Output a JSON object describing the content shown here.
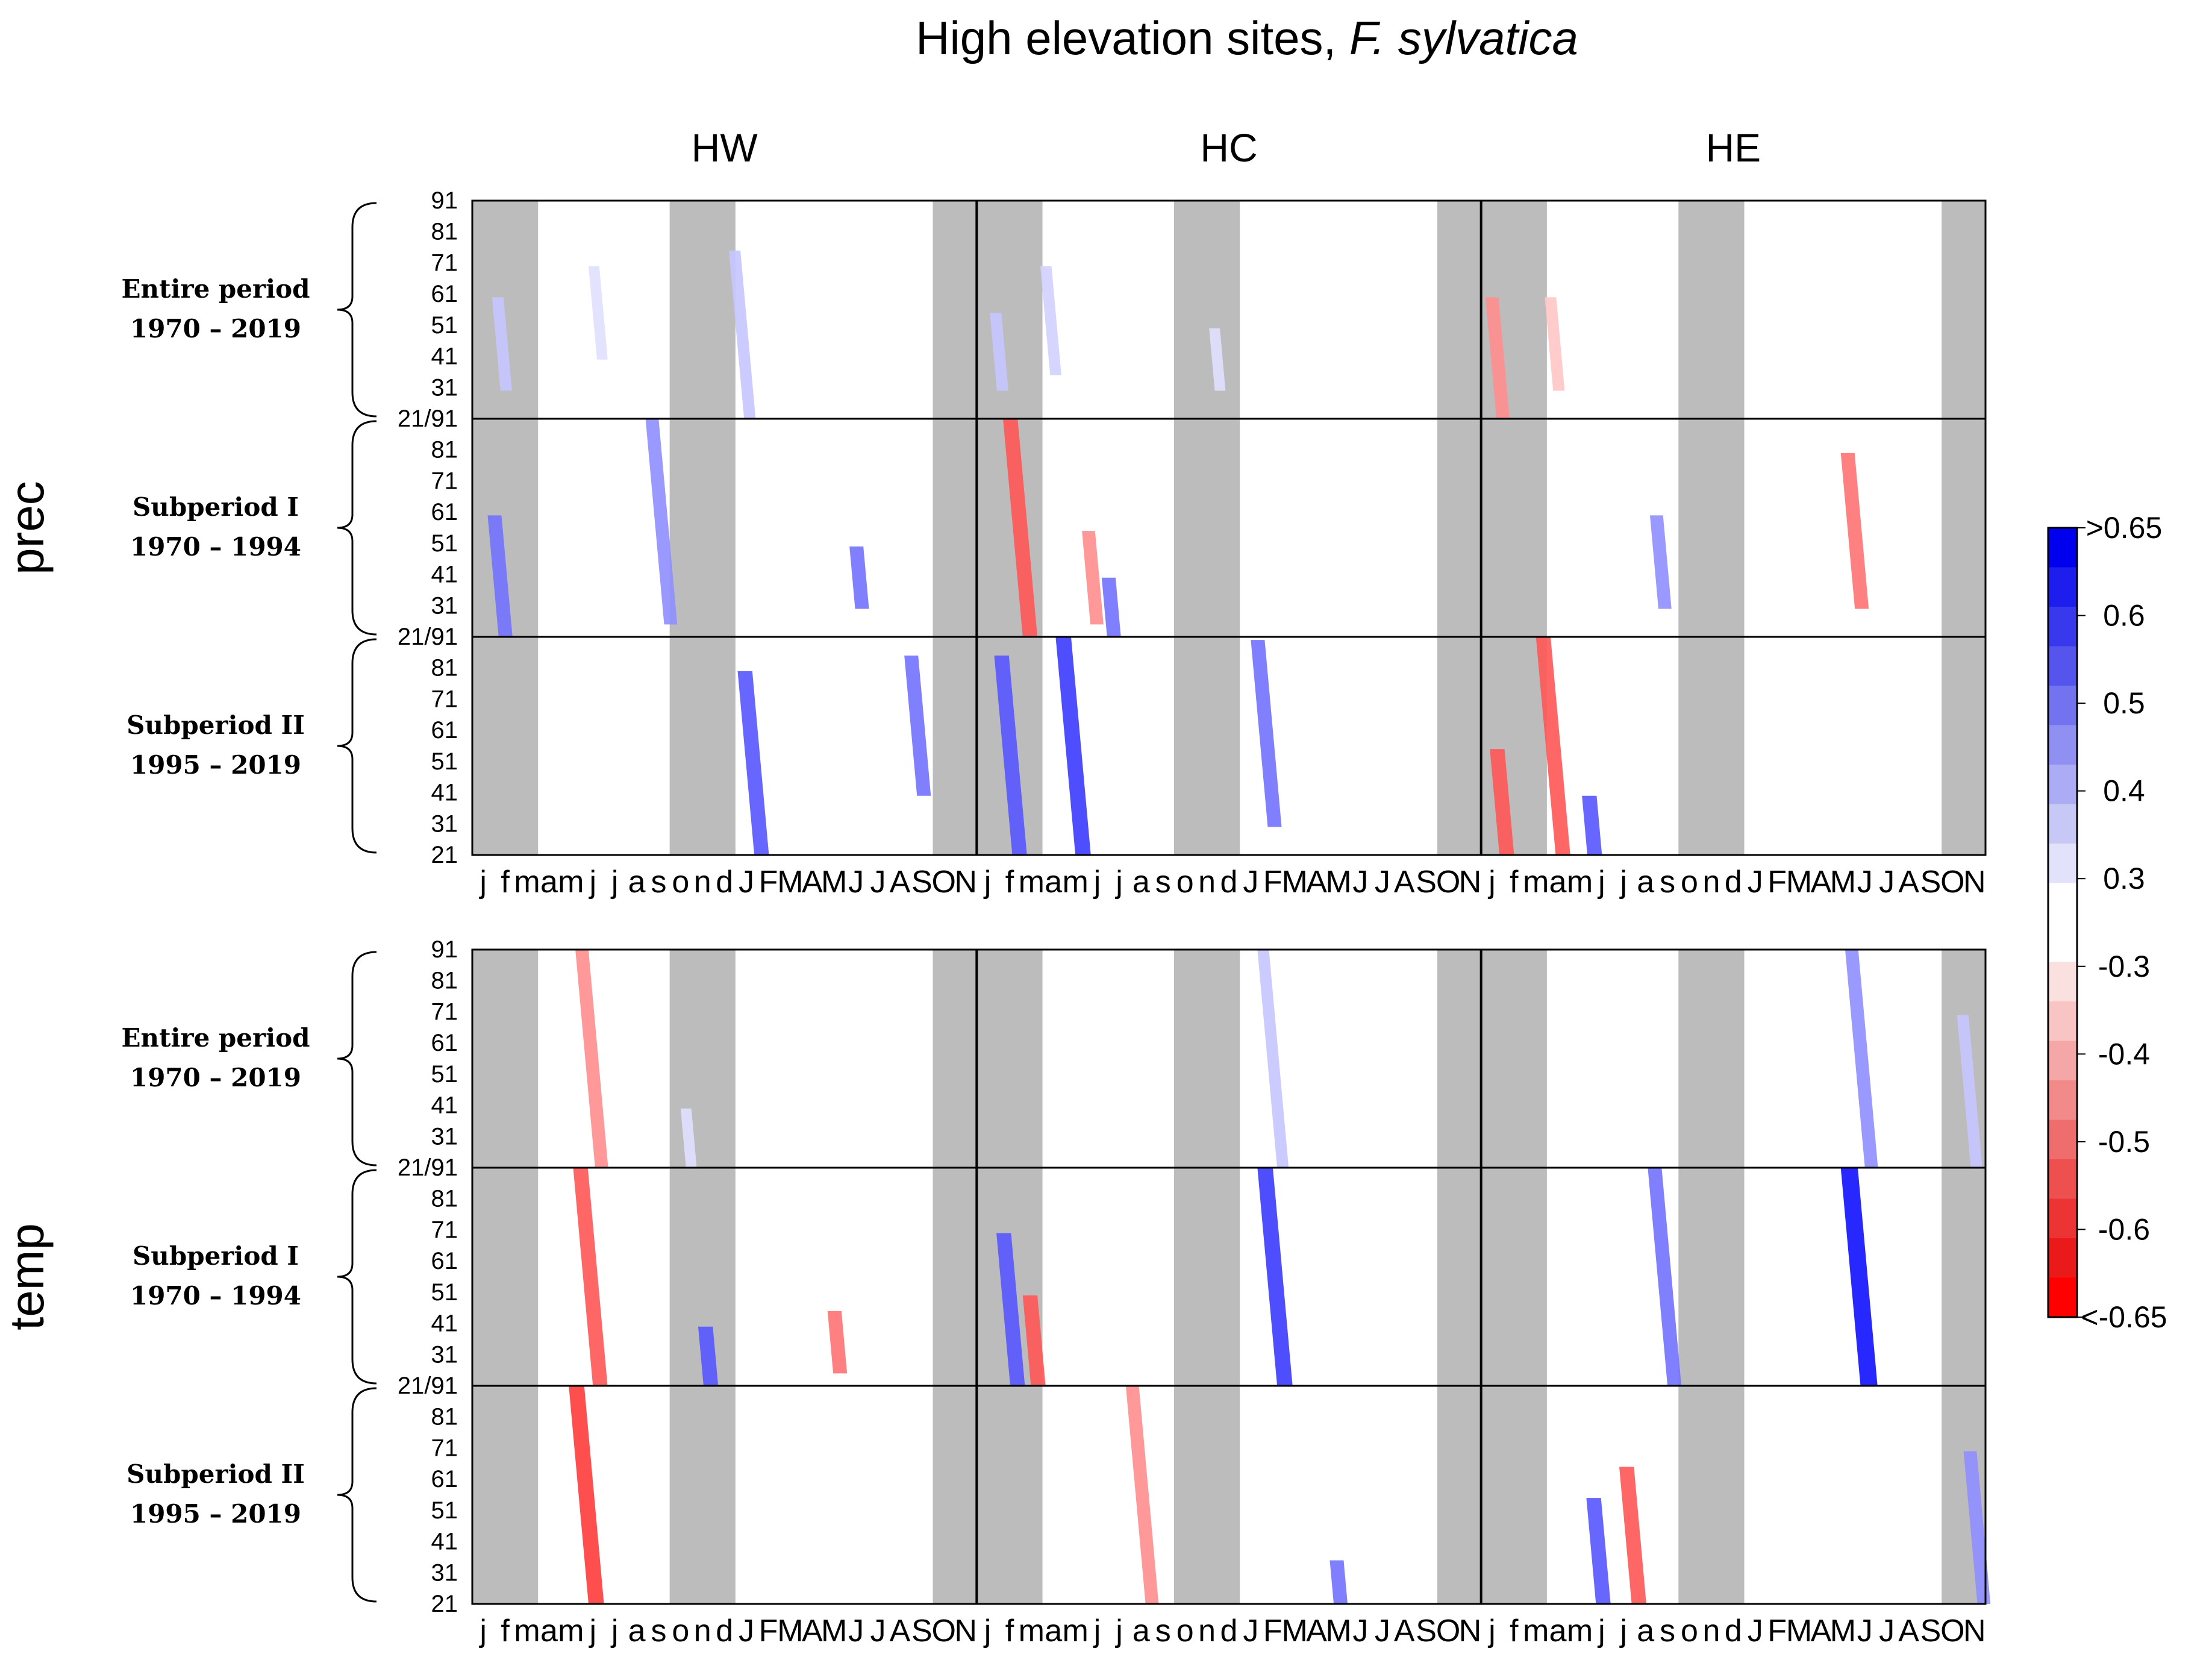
{
  "chart_data": {
    "type": "heatmap",
    "title_prefix": "High elevation sites, ",
    "title_italic": "F. sylvatica",
    "columns": [
      "HW",
      "HC",
      "HE"
    ],
    "variables": [
      "prec",
      "temp"
    ],
    "periods": [
      {
        "name": "Entire period",
        "years": "1970 – 2019"
      },
      {
        "name": "Subperiod I",
        "years": "1970 – 1994"
      },
      {
        "name": "Subperiod II",
        "years": "1995 – 2019"
      }
    ],
    "y_ticks_upper": [
      "91",
      "81",
      "71",
      "61",
      "51",
      "41",
      "31"
    ],
    "y_tick_join": "21/91",
    "y_tick_bottom": "21",
    "x_month_labels": [
      "j",
      "f",
      "m",
      "a",
      "m",
      "j",
      "j",
      "a",
      "s",
      "o",
      "n",
      "d",
      "J",
      "F",
      "M",
      "A",
      "M",
      "J",
      "J",
      "A",
      "S",
      "O",
      "N"
    ],
    "grey_month_ranges": [
      [
        0,
        2
      ],
      [
        9,
        11
      ],
      [
        21,
        22
      ]
    ],
    "colorbar": {
      "labels": [
        ">0.65",
        "0.6",
        "0.5",
        "0.4",
        "0.3",
        "-0.3",
        "-0.4",
        "-0.5",
        "-0.6",
        "<-0.65"
      ],
      "colors": [
        "#0000ee",
        "#1d1ded",
        "#3838ec",
        "#5555ee",
        "#7373f0",
        "#9090f2",
        "#acacf4",
        "#c8c8f6",
        "#e2e2fa",
        "#ffffff",
        "#ffffff",
        "#fbe0e0",
        "#f8c4c4",
        "#f5a7a7",
        "#f38a8a",
        "#f06d6d",
        "#ee5050",
        "#ec3434",
        "#eb1a1a",
        "#ff0000"
      ]
    },
    "correlation_streaks": [
      {
        "var": "prec",
        "period": 0,
        "col": 0,
        "month": 0.9,
        "age": [
          30,
          60
        ],
        "sign": "pos",
        "r": 0.35
      },
      {
        "var": "prec",
        "period": 0,
        "col": 0,
        "month": 5.3,
        "age": [
          40,
          70
        ],
        "sign": "pos",
        "r": 0.3
      },
      {
        "var": "prec",
        "period": 0,
        "col": 0,
        "month": 11.7,
        "age": [
          21,
          75
        ],
        "sign": "pos",
        "r": 0.35
      },
      {
        "var": "prec",
        "period": 0,
        "col": 1,
        "month": 0.6,
        "age": [
          30,
          55
        ],
        "sign": "pos",
        "r": 0.35
      },
      {
        "var": "prec",
        "period": 0,
        "col": 1,
        "month": 2.9,
        "age": [
          35,
          70
        ],
        "sign": "pos",
        "r": 0.33
      },
      {
        "var": "prec",
        "period": 0,
        "col": 1,
        "month": 10.6,
        "age": [
          30,
          50
        ],
        "sign": "pos",
        "r": 0.3
      },
      {
        "var": "prec",
        "period": 0,
        "col": 2,
        "month": 0.2,
        "age": [
          21,
          60
        ],
        "sign": "neg",
        "r": -0.45
      },
      {
        "var": "prec",
        "period": 0,
        "col": 2,
        "month": 2.9,
        "age": [
          30,
          60
        ],
        "sign": "neg",
        "r": -0.35
      },
      {
        "var": "prec",
        "period": 1,
        "col": 0,
        "month": 0.7,
        "age": [
          21,
          60
        ],
        "sign": "pos",
        "r": 0.5
      },
      {
        "var": "prec",
        "period": 1,
        "col": 0,
        "month": 7.9,
        "age": [
          25,
          91
        ],
        "sign": "pos",
        "r": 0.45
      },
      {
        "var": "prec",
        "period": 1,
        "col": 0,
        "month": 17.2,
        "age": [
          30,
          50
        ],
        "sign": "pos",
        "r": 0.5
      },
      {
        "var": "prec",
        "period": 1,
        "col": 1,
        "month": 1.2,
        "age": [
          21,
          91
        ],
        "sign": "neg",
        "r": -0.55
      },
      {
        "var": "prec",
        "period": 1,
        "col": 1,
        "month": 4.8,
        "age": [
          25,
          55
        ],
        "sign": "neg",
        "r": -0.45
      },
      {
        "var": "prec",
        "period": 1,
        "col": 1,
        "month": 5.7,
        "age": [
          21,
          40
        ],
        "sign": "pos",
        "r": 0.5
      },
      {
        "var": "prec",
        "period": 1,
        "col": 2,
        "month": 16.4,
        "age": [
          30,
          80
        ],
        "sign": "neg",
        "r": -0.5
      },
      {
        "var": "prec",
        "period": 1,
        "col": 2,
        "month": 7.7,
        "age": [
          30,
          60
        ],
        "sign": "pos",
        "r": 0.45
      },
      {
        "var": "prec",
        "period": 2,
        "col": 0,
        "month": 12.1,
        "age": [
          21,
          80
        ],
        "sign": "pos",
        "r": 0.55
      },
      {
        "var": "prec",
        "period": 2,
        "col": 0,
        "month": 19.7,
        "age": [
          40,
          85
        ],
        "sign": "pos",
        "r": 0.5
      },
      {
        "var": "prec",
        "period": 2,
        "col": 1,
        "month": 0.8,
        "age": [
          21,
          85
        ],
        "sign": "pos",
        "r": 0.55
      },
      {
        "var": "prec",
        "period": 2,
        "col": 1,
        "month": 3.6,
        "age": [
          21,
          91
        ],
        "sign": "pos",
        "r": 0.6
      },
      {
        "var": "prec",
        "period": 2,
        "col": 1,
        "month": 12.5,
        "age": [
          30,
          90
        ],
        "sign": "pos",
        "r": 0.5
      },
      {
        "var": "prec",
        "period": 2,
        "col": 2,
        "month": 0.4,
        "age": [
          21,
          55
        ],
        "sign": "neg",
        "r": -0.55
      },
      {
        "var": "prec",
        "period": 2,
        "col": 2,
        "month": 2.5,
        "age": [
          21,
          91
        ],
        "sign": "neg",
        "r": -0.55
      },
      {
        "var": "prec",
        "period": 2,
        "col": 2,
        "month": 4.6,
        "age": [
          21,
          40
        ],
        "sign": "pos",
        "r": 0.55
      },
      {
        "var": "temp",
        "period": 0,
        "col": 0,
        "month": 4.7,
        "age": [
          21,
          91
        ],
        "sign": "neg",
        "r": -0.45
      },
      {
        "var": "temp",
        "period": 0,
        "col": 0,
        "month": 9.5,
        "age": [
          21,
          40
        ],
        "sign": "pos",
        "r": 0.3
      },
      {
        "var": "temp",
        "period": 0,
        "col": 1,
        "month": 12.8,
        "age": [
          21,
          91
        ],
        "sign": "pos",
        "r": 0.35
      },
      {
        "var": "temp",
        "period": 0,
        "col": 2,
        "month": 16.6,
        "age": [
          21,
          91
        ],
        "sign": "pos",
        "r": 0.45
      },
      {
        "var": "temp",
        "period": 0,
        "col": 2,
        "month": 21.7,
        "age": [
          21,
          70
        ],
        "sign": "pos",
        "r": 0.35
      },
      {
        "var": "temp",
        "period": 1,
        "col": 0,
        "month": 4.6,
        "age": [
          21,
          91
        ],
        "sign": "neg",
        "r": -0.55
      },
      {
        "var": "temp",
        "period": 1,
        "col": 0,
        "month": 10.3,
        "age": [
          21,
          40
        ],
        "sign": "pos",
        "r": 0.55
      },
      {
        "var": "temp",
        "period": 1,
        "col": 0,
        "month": 16.2,
        "age": [
          25,
          45
        ],
        "sign": "neg",
        "r": -0.5
      },
      {
        "var": "temp",
        "period": 1,
        "col": 1,
        "month": 0.9,
        "age": [
          21,
          70
        ],
        "sign": "pos",
        "r": 0.55
      },
      {
        "var": "temp",
        "period": 1,
        "col": 1,
        "month": 2.1,
        "age": [
          21,
          50
        ],
        "sign": "neg",
        "r": -0.55
      },
      {
        "var": "temp",
        "period": 1,
        "col": 1,
        "month": 12.8,
        "age": [
          21,
          91
        ],
        "sign": "pos",
        "r": 0.6
      },
      {
        "var": "temp",
        "period": 1,
        "col": 2,
        "month": 7.6,
        "age": [
          21,
          91
        ],
        "sign": "pos",
        "r": 0.5
      },
      {
        "var": "temp",
        "period": 1,
        "col": 2,
        "month": 16.4,
        "age": [
          21,
          91
        ],
        "sign": "pos",
        "r": 0.7
      },
      {
        "var": "temp",
        "period": 2,
        "col": 0,
        "month": 4.4,
        "age": [
          21,
          91
        ],
        "sign": "neg",
        "r": -0.6
      },
      {
        "var": "temp",
        "period": 2,
        "col": 1,
        "month": 6.8,
        "age": [
          21,
          91
        ],
        "sign": "neg",
        "r": -0.45
      },
      {
        "var": "temp",
        "period": 2,
        "col": 1,
        "month": 16.1,
        "age": [
          21,
          35
        ],
        "sign": "pos",
        "r": 0.5
      },
      {
        "var": "temp",
        "period": 2,
        "col": 2,
        "month": 4.8,
        "age": [
          21,
          55
        ],
        "sign": "pos",
        "r": 0.55
      },
      {
        "var": "temp",
        "period": 2,
        "col": 2,
        "month": 6.3,
        "age": [
          21,
          65
        ],
        "sign": "neg",
        "r": -0.55
      },
      {
        "var": "temp",
        "period": 2,
        "col": 2,
        "month": 22.0,
        "age": [
          21,
          70
        ],
        "sign": "pos",
        "r": 0.45
      }
    ]
  }
}
